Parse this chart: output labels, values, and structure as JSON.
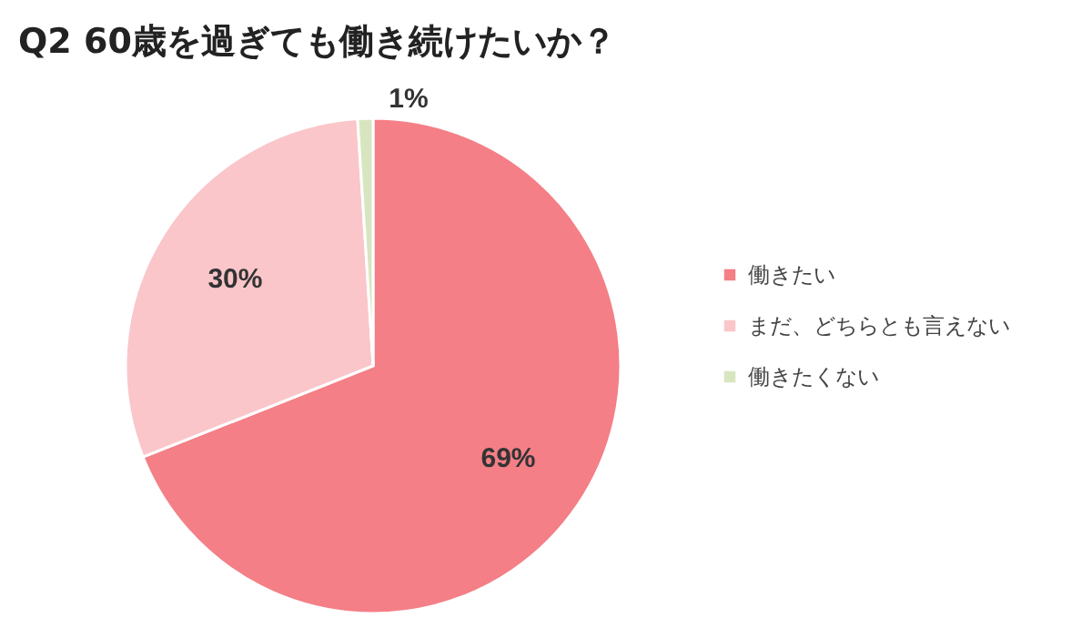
{
  "chart_data": {
    "type": "pie",
    "title": "Q2  60歳を過ぎても働き続けたいか？",
    "categories": [
      "働きたい",
      "まだ、どちらとも言えない",
      "働きたくない"
    ],
    "values": [
      69,
      30,
      1
    ],
    "colors": [
      "#f47f86",
      "#fac6ca",
      "#d8e6c0"
    ],
    "value_labels": [
      "69%",
      "30%",
      "1%"
    ],
    "legend": "right"
  }
}
